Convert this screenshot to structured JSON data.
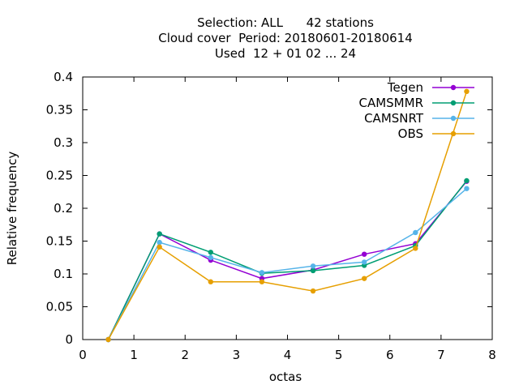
{
  "chart_data": {
    "type": "line",
    "title_lines": [
      "Selection: ALL      42 stations",
      "Cloud cover  Period: 20180601-20180614",
      "Used  12 + 01 02 ... 24"
    ],
    "xlabel": "octas",
    "ylabel": "Relative frequency",
    "xlim": [
      0,
      8
    ],
    "ylim": [
      0,
      0.4
    ],
    "x_ticks": [
      "0",
      "1",
      "2",
      "3",
      "4",
      "5",
      "6",
      "7",
      "8"
    ],
    "y_ticks": [
      "0",
      "0.05",
      "0.1",
      "0.15",
      "0.2",
      "0.25",
      "0.3",
      "0.35",
      "0.4"
    ],
    "grid": false,
    "legend_position": "top-right",
    "x": [
      0.5,
      1.5,
      2.5,
      3.5,
      4.5,
      5.5,
      6.5,
      7.5
    ],
    "series": [
      {
        "name": "Tegen",
        "color": "#9400d3",
        "values": [
          0,
          0.161,
          0.121,
          0.093,
          0.106,
          0.13,
          0.146,
          0.241
        ]
      },
      {
        "name": "CAMSMMR",
        "color": "#009e73",
        "values": [
          0,
          0.161,
          0.133,
          0.101,
          0.105,
          0.113,
          0.143,
          0.242
        ]
      },
      {
        "name": "CAMSNRT",
        "color": "#56b4e9",
        "values": [
          0,
          0.148,
          0.125,
          0.102,
          0.112,
          0.118,
          0.163,
          0.23
        ]
      },
      {
        "name": "OBS",
        "color": "#e69f00",
        "values": [
          0,
          0.141,
          0.088,
          0.088,
          0.074,
          0.093,
          0.139,
          0.378
        ]
      }
    ]
  }
}
